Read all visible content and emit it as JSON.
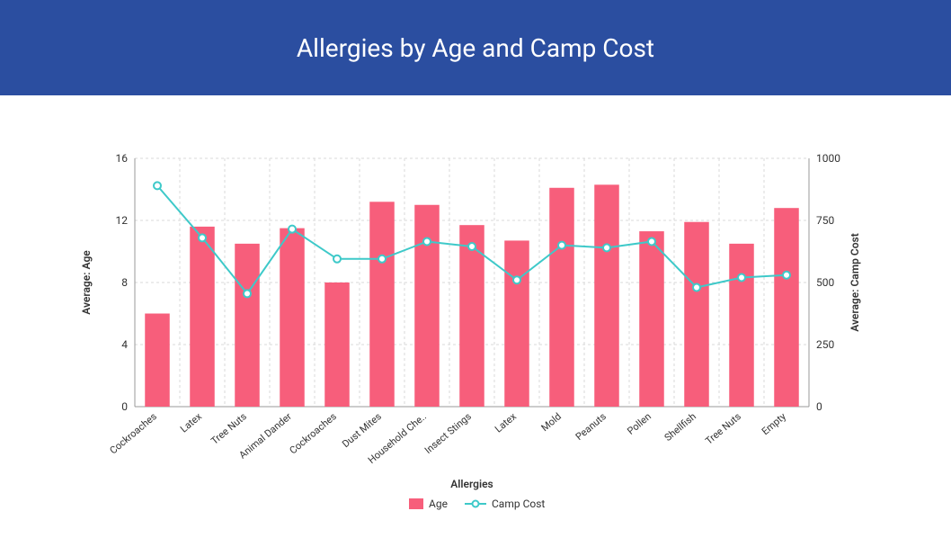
{
  "header": {
    "title": "Allergies by Age and Camp Cost",
    "background_color": "#2b4ea0",
    "text_color": "#ffffff"
  },
  "chart": {
    "type": "bar_line_combo",
    "x_axis": {
      "title": "Allergies",
      "categories": [
        "Cockroaches",
        "Latex",
        "Tree Nuts",
        "Animal Dander",
        "Cockroaches",
        "Dust Mites",
        "Household Che..",
        "Insect Stings",
        "Latex",
        "Mold",
        "Peanuts",
        "Pollen",
        "Shellfish",
        "Tree Nuts",
        "Empty"
      ]
    },
    "y_left": {
      "title": "Average: Age",
      "min": 0,
      "max": 16,
      "tick_step": 4,
      "ticks": [
        0,
        4,
        8,
        12,
        16
      ]
    },
    "y_right": {
      "title": "Average: Camp Cost",
      "min": 0,
      "max": 1000,
      "tick_step": 250,
      "ticks": [
        0,
        250,
        500,
        750,
        1000
      ]
    },
    "series": {
      "bars": {
        "name": "Age",
        "color": "#f75e7b",
        "values": [
          6.0,
          11.6,
          10.5,
          11.5,
          8.0,
          13.2,
          13.0,
          11.7,
          10.7,
          14.1,
          14.3,
          11.3,
          11.9,
          10.5,
          12.8
        ]
      },
      "line": {
        "name": "Camp Cost",
        "color": "#3ec9c9",
        "marker": "circle",
        "marker_fill": "#ffffff",
        "values": [
          890,
          680,
          455,
          715,
          595,
          595,
          665,
          645,
          510,
          650,
          640,
          665,
          480,
          520,
          530
        ]
      }
    },
    "style": {
      "bar_width_ratio": 0.55,
      "grid_color": "#d9d9d9",
      "axis_line_color": "#999999",
      "plot_background": "#ffffff",
      "line_width": 2,
      "marker_size": 4,
      "x_label_rotate": -40
    },
    "legend": {
      "items": [
        "Age",
        "Camp Cost"
      ]
    }
  }
}
